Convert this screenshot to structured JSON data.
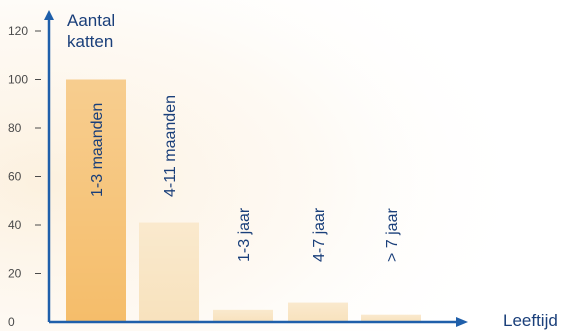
{
  "chart_data": {
    "type": "bar",
    "ylabel_lines": [
      "Aantal",
      "katten"
    ],
    "xlabel": "Leeftijd",
    "ylim": [
      0,
      120
    ],
    "yticks": [
      0,
      20,
      40,
      60,
      80,
      100,
      120
    ],
    "categories": [
      "1-3 maanden",
      "4-11 maanden",
      "1-3 jaar",
      "4-7 jaar",
      "> 7 jaar"
    ],
    "values": [
      100,
      41,
      5,
      8,
      3
    ],
    "legend": "none",
    "grid": false,
    "colors": {
      "axis": "#1f5faa",
      "tick_label": "#4a4a4a",
      "bar_highlight": "#f5bd6a",
      "bar_base": "#f8e2bd",
      "background_glow": "#fcefdb",
      "text": "#1a3f7a"
    }
  }
}
